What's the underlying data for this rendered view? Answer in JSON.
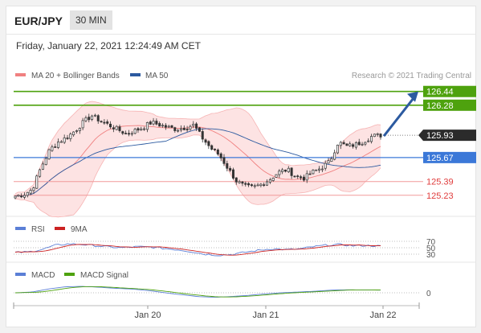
{
  "header": {
    "pair": "EUR/JPY",
    "timeframe": "30 MIN"
  },
  "timestamp": "Friday, January 22, 2021 12:24:49 AM CET",
  "credit": "Research © 2021 Trading Central",
  "colors": {
    "bollinger": "#f08080",
    "ma50": "#2c5aa0",
    "support": "#3b78d8",
    "resistance_green": "#4ea20e",
    "red_level": "#e03c3c",
    "arrow": "#2c5aa0",
    "rsi": "#5b7fd6",
    "rsi_ma": "#cc2222",
    "macd": "#5b7fd6",
    "macd_signal": "#4ea20e"
  },
  "chart_data": [
    {
      "type": "candlestick",
      "legend": [
        {
          "label": "MA 20 + Bollinger Bands",
          "color": "#f08080"
        },
        {
          "label": "MA 50",
          "color": "#2c5aa0"
        }
      ],
      "ylim": [
        125.05,
        126.55
      ],
      "x_ticks": [
        "Jan 20",
        "Jan 21",
        "Jan 22"
      ],
      "current_price": "125.93",
      "levels": [
        {
          "value": 126.44,
          "label": "126.44",
          "kind": "resistance"
        },
        {
          "value": 126.28,
          "label": "126.28",
          "kind": "resistance"
        },
        {
          "value": 125.67,
          "label": "125.67",
          "kind": "pivot"
        },
        {
          "value": 125.39,
          "label": "125.39",
          "kind": "support"
        },
        {
          "value": 125.23,
          "label": "125.23",
          "kind": "support"
        }
      ],
      "close_anchors": [
        125.22,
        125.24,
        125.3,
        125.55,
        125.75,
        125.85,
        125.9,
        125.98,
        126.08,
        126.16,
        126.1,
        126.05,
        126.0,
        125.95,
        125.98,
        126.02,
        126.08,
        126.05,
        126.02,
        126.0,
        126.02,
        126.05,
        125.9,
        125.78,
        125.7,
        125.55,
        125.4,
        125.33,
        125.32,
        125.36,
        125.42,
        125.5,
        125.53,
        125.45,
        125.43,
        125.5,
        125.55,
        125.62,
        125.85,
        125.8,
        125.82,
        125.86,
        125.92,
        125.93
      ]
    },
    {
      "type": "line",
      "legend": [
        {
          "label": "RSI",
          "color": "#5b7fd6"
        },
        {
          "label": "9MA",
          "color": "#cc2222"
        }
      ],
      "y_ticks": [
        "70",
        "50",
        "30"
      ],
      "ylim": [
        15,
        85
      ],
      "rsi_anchors": [
        35,
        37,
        45,
        58,
        62,
        60,
        56,
        52,
        50,
        53,
        52,
        48,
        44,
        38,
        30,
        27,
        29,
        36,
        42,
        47,
        44,
        46,
        53,
        58,
        60,
        56,
        57,
        55
      ]
    },
    {
      "type": "line",
      "legend": [
        {
          "label": "MACD",
          "color": "#5b7fd6"
        },
        {
          "label": "MACD Signal",
          "color": "#4ea20e"
        }
      ],
      "y_ticks": [
        "0"
      ],
      "ylim": [
        -0.3,
        0.3
      ],
      "macd_anchors": [
        0.0,
        0.02,
        0.1,
        0.16,
        0.17,
        0.15,
        0.12,
        0.1,
        0.06,
        0.0,
        -0.05,
        -0.1,
        -0.12,
        -0.1,
        -0.07,
        -0.03,
        0.0,
        0.02,
        0.04,
        0.07,
        0.08,
        0.075,
        0.07
      ]
    }
  ]
}
